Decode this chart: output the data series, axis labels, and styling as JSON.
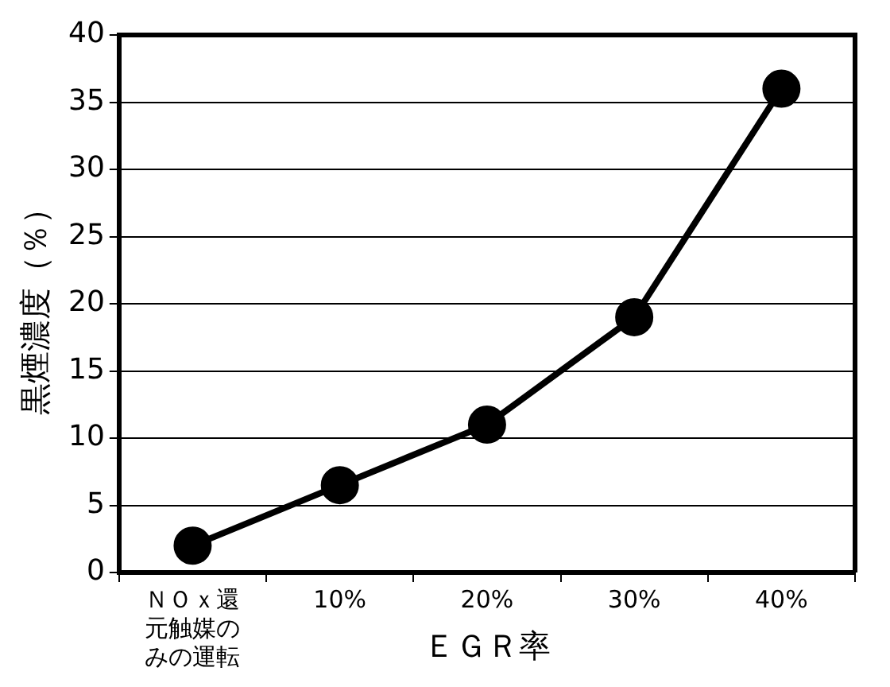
{
  "chart_data": {
    "type": "line",
    "ylabel": "黒煙濃度（％）",
    "xlabel": "ＥＧＲ率",
    "categories": [
      "ＮＯｘ還元触媒のみの運転",
      "10%",
      "20%",
      "30%",
      "40%"
    ],
    "series": [
      {
        "color": "#000000",
        "values": [
          2,
          6.5,
          11,
          19,
          36
        ]
      }
    ],
    "ylim": [
      0,
      40
    ],
    "yticks": [
      0,
      5,
      10,
      15,
      20,
      25,
      30,
      35,
      40
    ],
    "grid": "y",
    "marker": "circle",
    "line_style": "solid",
    "legend": false
  }
}
